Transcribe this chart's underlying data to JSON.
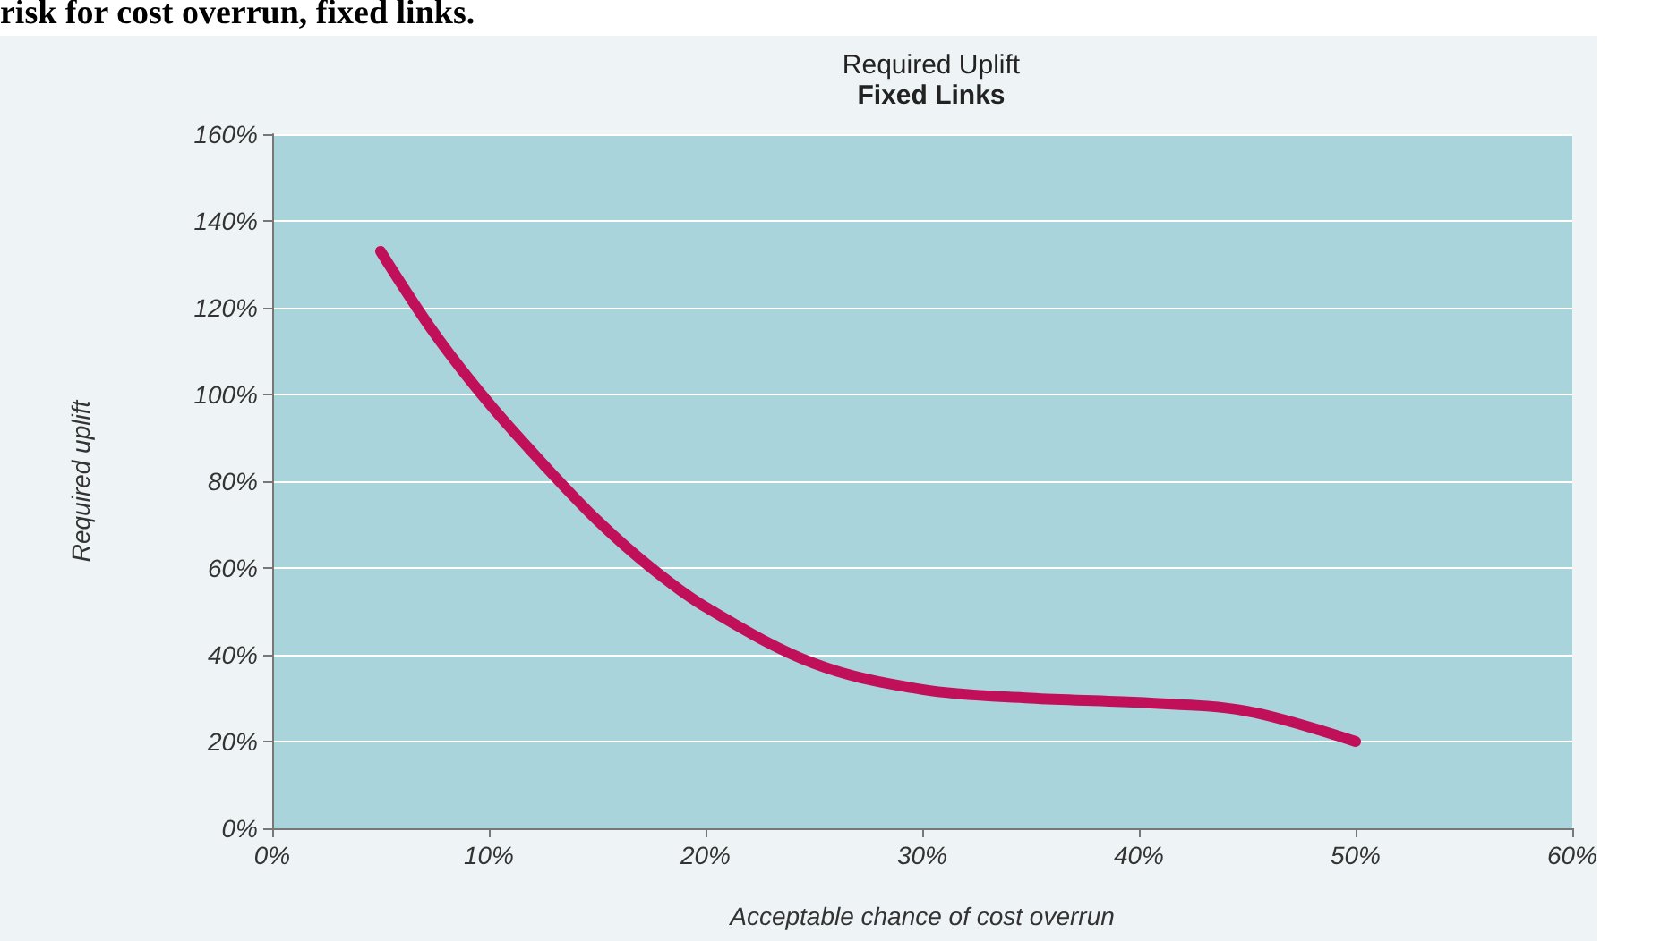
{
  "chart_data": {
    "type": "line",
    "title": "Required Uplift",
    "subtitle": "Fixed Links",
    "xlabel": "Acceptable chance of cost overrun",
    "ylabel": "Required uplift",
    "annotations": [
      "risk for cost overrun, fixed links."
    ],
    "x": [
      5,
      7.5,
      10,
      12.5,
      15,
      17.5,
      20,
      25,
      30,
      35,
      40,
      45,
      50
    ],
    "series": [
      {
        "color": "#c0105a",
        "values": [
          133,
          114,
          98,
          84,
          71,
          60,
          51,
          38,
          32,
          30,
          29,
          27,
          20
        ]
      }
    ],
    "xlim": [
      0,
      60
    ],
    "xticks": [
      {
        "value": 0,
        "label": "0%"
      },
      {
        "value": 10,
        "label": "10%"
      },
      {
        "value": 20,
        "label": "20%"
      },
      {
        "value": 30,
        "label": "30%"
      },
      {
        "value": 40,
        "label": "40%"
      },
      {
        "value": 50,
        "label": "50%"
      },
      {
        "value": 60,
        "label": "60%"
      }
    ],
    "ylim": [
      0,
      160
    ],
    "yticks": [
      {
        "value": 0,
        "label": "0%"
      },
      {
        "value": 20,
        "label": "20%"
      },
      {
        "value": 40,
        "label": "40%"
      },
      {
        "value": 60,
        "label": "60%"
      },
      {
        "value": 80,
        "label": "80%"
      },
      {
        "value": 100,
        "label": "100%"
      },
      {
        "value": 120,
        "label": "120%"
      },
      {
        "value": 140,
        "label": "140%"
      },
      {
        "value": 160,
        "label": "160%"
      }
    ],
    "grid": "y",
    "marker": "none",
    "line_style": "solid"
  }
}
